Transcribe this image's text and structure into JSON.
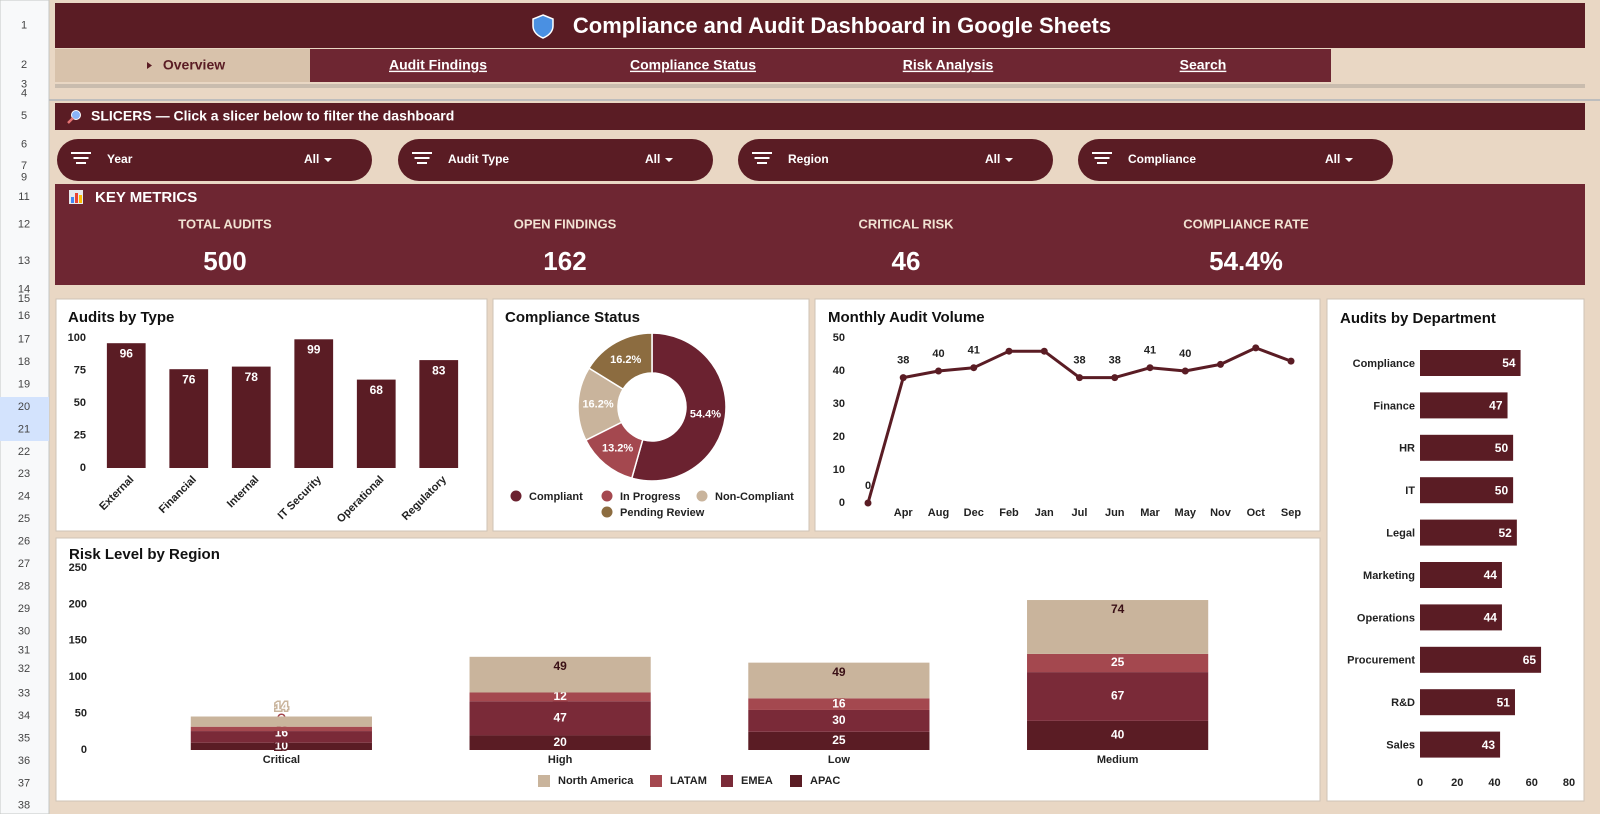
{
  "row_headers": [
    "1",
    "2",
    "3",
    "4",
    "5",
    "6",
    "7",
    "9",
    "11",
    "12",
    "13",
    "14",
    "15",
    "16",
    "17",
    "18",
    "19",
    "20",
    "21",
    "22",
    "23",
    "24",
    "25",
    "26",
    "27",
    "28",
    "29",
    "30",
    "31",
    "32",
    "33",
    "34",
    "35",
    "36",
    "37",
    "38"
  ],
  "header": {
    "title": "Compliance and Audit Dashboard in Google Sheets"
  },
  "tabs": [
    "Overview",
    "Audit Findings",
    "Compliance Status",
    "Risk Analysis",
    "Search"
  ],
  "slicers": {
    "title": "SLICERS — Click a slicer below to filter the dashboard",
    "items": [
      {
        "label": "Year",
        "value": "All"
      },
      {
        "label": "Audit Type",
        "value": "All"
      },
      {
        "label": "Region",
        "value": "All"
      },
      {
        "label": "Compliance",
        "value": "All"
      }
    ]
  },
  "key_metrics": {
    "title": "KEY METRICS",
    "items": [
      {
        "label": "TOTAL AUDITS",
        "value": "500"
      },
      {
        "label": "OPEN FINDINGS",
        "value": "162"
      },
      {
        "label": "CRITICAL RISK",
        "value": "46"
      },
      {
        "label": "COMPLIANCE RATE",
        "value": "54.4%"
      }
    ]
  },
  "chart_data": [
    {
      "type": "bar",
      "title": "Audits by Type",
      "categories": [
        "External",
        "Financial",
        "Internal",
        "IT Security",
        "Operational",
        "Regulatory"
      ],
      "values": [
        96,
        76,
        78,
        99,
        68,
        83
      ],
      "color": "#5a1c24",
      "ylim": [
        0,
        100
      ],
      "yticks": [
        0,
        25,
        50,
        75,
        100
      ]
    },
    {
      "type": "donut",
      "title": "Compliance Status",
      "categories": [
        "Compliant",
        "In Progress",
        "Non-Compliant",
        "Pending Review"
      ],
      "values": [
        54.4,
        13.2,
        16.2,
        16.2
      ],
      "value_labels": [
        "54.4%",
        "13.2%",
        "16.2%",
        "16.2%"
      ],
      "colors": [
        "#6b2230",
        "#a4484f",
        "#c9b49c",
        "#8c6c40"
      ]
    },
    {
      "type": "line",
      "title": "Monthly Audit Volume",
      "categories": [
        null,
        "Apr",
        "Aug",
        "Dec",
        "Feb",
        "Jan",
        "Jul",
        "Jun",
        "Mar",
        "May",
        "Nov",
        "Oct",
        "Sep"
      ],
      "values": [
        0,
        38,
        40,
        41,
        46,
        46,
        38,
        38,
        41,
        40,
        42,
        47,
        43
      ],
      "value_labels": [
        "0",
        "38",
        "40",
        "41",
        null,
        null,
        "38",
        "38",
        "41",
        "40",
        null,
        null,
        null
      ],
      "color": "#5a1c24",
      "ylim": [
        0,
        50
      ],
      "yticks": [
        0,
        10,
        20,
        30,
        40,
        50
      ]
    },
    {
      "type": "barh",
      "title": "Audits by Department",
      "categories": [
        "Compliance",
        "Finance",
        "HR",
        "IT",
        "Legal",
        "Marketing",
        "Operations",
        "Procurement",
        "R&D",
        "Sales"
      ],
      "values": [
        54,
        47,
        50,
        50,
        52,
        44,
        44,
        65,
        51,
        43
      ],
      "color": "#5a1c24",
      "xlim": [
        0,
        80
      ],
      "xticks": [
        0,
        20,
        40,
        60,
        80
      ]
    },
    {
      "type": "stacked",
      "title": "Risk Level by Region",
      "categories": [
        "Critical",
        "High",
        "Low",
        "Medium"
      ],
      "series": [
        {
          "name": "APAC",
          "color": "#5a1c24",
          "values": [
            10,
            20,
            25,
            40
          ]
        },
        {
          "name": "EMEA",
          "color": "#7a2a38",
          "values": [
            16,
            47,
            30,
            67
          ]
        },
        {
          "name": "LATAM",
          "color": "#a4484f",
          "values": [
            6,
            12,
            16,
            25
          ]
        },
        {
          "name": "North America",
          "color": "#c9b49c",
          "values": [
            14,
            49,
            49,
            74
          ]
        }
      ],
      "ylim": [
        0,
        250
      ],
      "yticks": [
        0,
        50,
        100,
        150,
        200,
        250
      ]
    }
  ]
}
